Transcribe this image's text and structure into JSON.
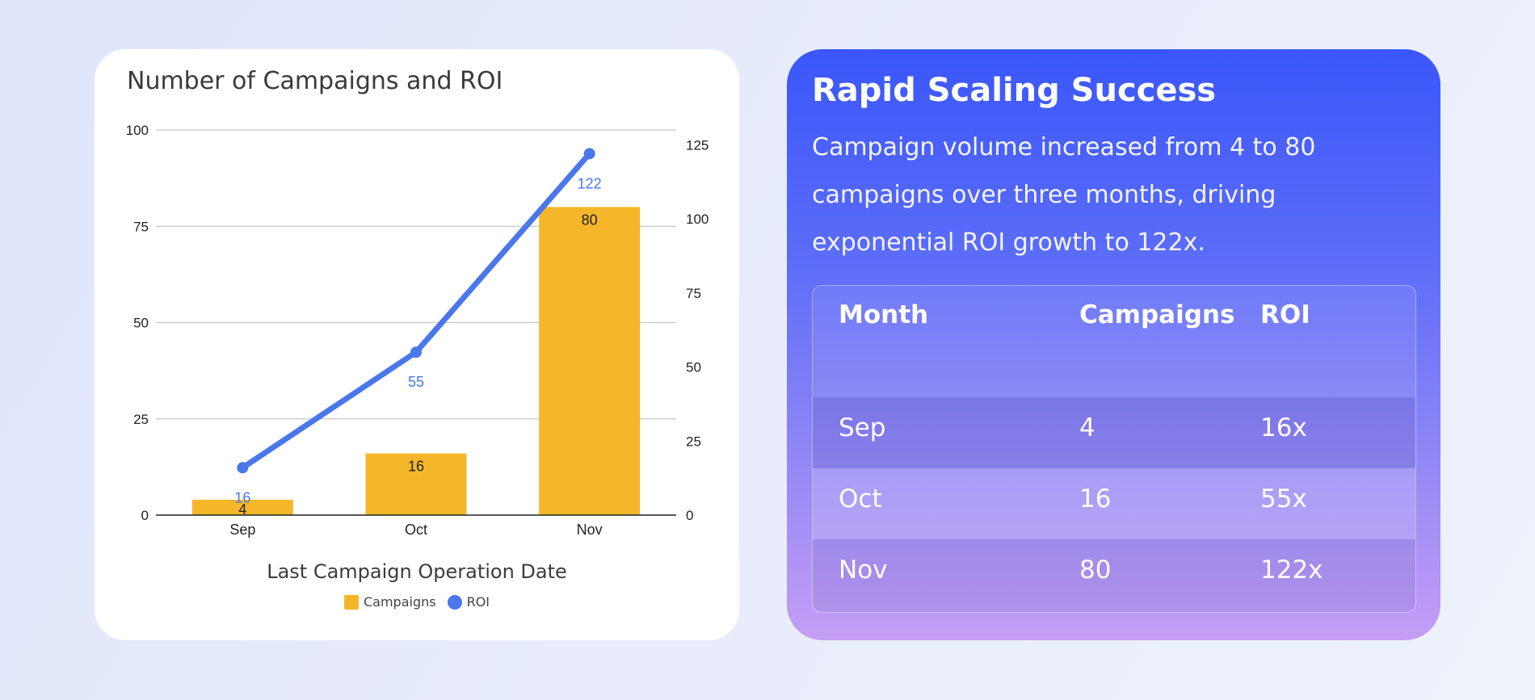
{
  "chart_data": {
    "type": "bar+line",
    "title": "Number of Campaigns and ROI",
    "categories": [
      "Sep",
      "Oct",
      "Nov"
    ],
    "series": [
      {
        "name": "Campaigns",
        "kind": "bar",
        "axis": "left",
        "values": [
          4,
          16,
          80
        ]
      },
      {
        "name": "ROI",
        "kind": "line",
        "axis": "right",
        "values": [
          16,
          55,
          122
        ]
      }
    ],
    "xlabel": "Last Campaign Operation Date",
    "ylim_left": [
      0,
      100
    ],
    "yticks_left": [
      0,
      25,
      50,
      75,
      100
    ],
    "ylim_right": [
      0,
      130
    ],
    "yticks_right": [
      0,
      25,
      50,
      75,
      100,
      125
    ],
    "grid": true,
    "legend": "bottom-center"
  },
  "colors": {
    "bar": "#f5b72a",
    "line": "#4a78ea"
  },
  "legend": {
    "campaigns": "Campaigns",
    "roi": "ROI"
  },
  "info": {
    "title": "Rapid Scaling Success",
    "description": "Campaign volume increased from 4 to 80 campaigns over three months, driving exponential ROI growth to 122x.",
    "table": {
      "headers": {
        "month": "Month",
        "campaigns": "Campaigns",
        "roi": "ROI"
      },
      "rows": [
        {
          "month": "Sep",
          "campaigns": "4",
          "roi": "16x"
        },
        {
          "month": "Oct",
          "campaigns": "16",
          "roi": "55x"
        },
        {
          "month": "Nov",
          "campaigns": "80",
          "roi": "122x"
        }
      ]
    }
  }
}
